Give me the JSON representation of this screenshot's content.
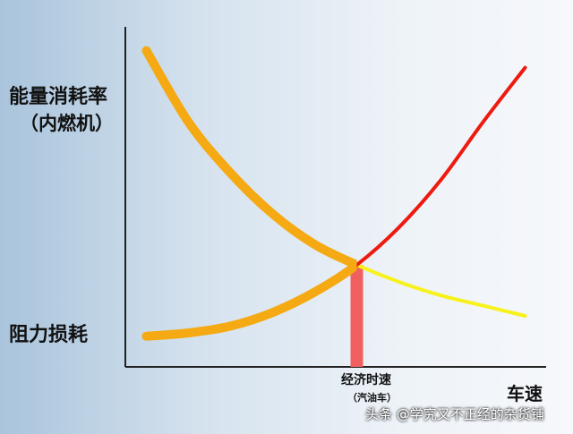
{
  "chart_data": {
    "type": "line",
    "title": "",
    "ylabel": "能量消耗率",
    "ylabel_sub": "（内燃机）",
    "y_low_label": "阻力损耗",
    "xlabel": "车速",
    "annotation": {
      "label": "经济时速",
      "sublabel": "（汽油车）"
    },
    "xlim": [
      0,
      10
    ],
    "ylim": [
      0,
      10
    ],
    "series": [
      {
        "x": [
          0.5,
          1.5,
          2.5,
          3.5,
          4.5,
          5.5,
          6.5,
          7.5,
          8.5,
          9.5
        ],
        "values": [
          9.3,
          7.2,
          5.7,
          4.5,
          3.6,
          3.0,
          2.5,
          2.1,
          1.8,
          1.5
        ],
        "color": "#f5a912",
        "tail_color": "#f7f21a"
      },
      {
        "x": [
          0.5,
          1.5,
          2.5,
          3.5,
          4.5,
          5.5,
          6.5,
          7.5,
          8.5,
          9.5
        ],
        "values": [
          0.9,
          1.0,
          1.2,
          1.6,
          2.2,
          3.0,
          4.1,
          5.5,
          7.2,
          8.8
        ],
        "color": "#f5a912",
        "tail_color": "#ee1a10"
      }
    ],
    "optimum_x": 5.5,
    "optimum_y": 3.0,
    "optimum_color": "#f06060",
    "grid": false,
    "legend": "none"
  },
  "watermark": "头条 @学究又不正经的杂货铺"
}
